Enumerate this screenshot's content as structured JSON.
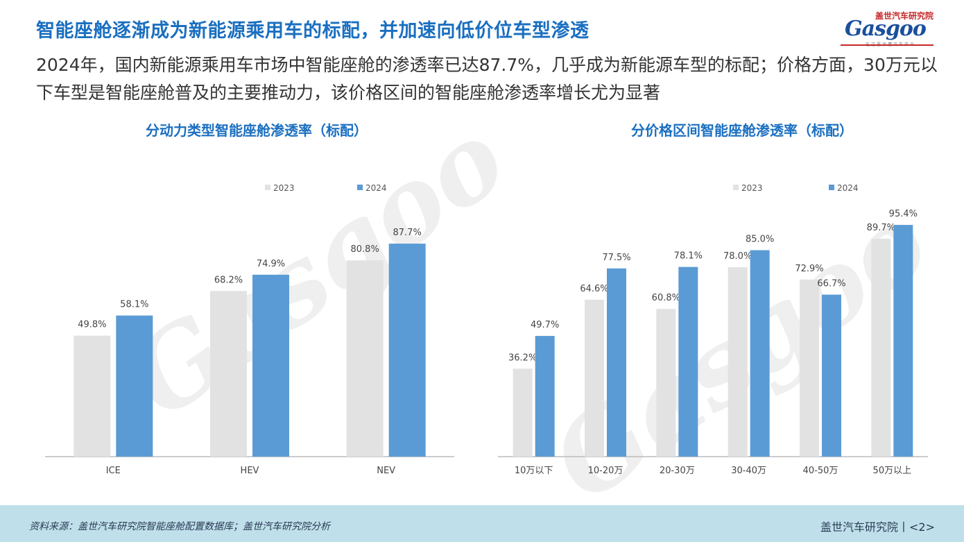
{
  "header": {
    "title": "智能座舱逐渐成为新能源乘用车的标配，并加速向低价位车型渗透",
    "subtitle": "2024年，国内新能源乘用车市场中智能座舱的渗透率已达87.7%，几乎成为新能源车型的标配；价格方面，30万元以下车型是智能座舱普及的主要推动力，该价格区间的智能座舱渗透率增长尤为显著"
  },
  "logo": {
    "cn": "盖世汽车研究院",
    "main": "Gasgoo",
    "slogan": "在这里读懂汽车产业"
  },
  "colors": {
    "y2023": "#e2e2e2",
    "y2024": "#5b9bd5",
    "title": "#1a6fc0"
  },
  "chart_data": [
    {
      "type": "bar",
      "title": "分动力类型智能座舱渗透率（标配）",
      "categories": [
        "ICE",
        "HEV",
        "NEV"
      ],
      "series": [
        {
          "name": "2023",
          "values": [
            49.8,
            68.2,
            80.8
          ]
        },
        {
          "name": "2024",
          "values": [
            58.1,
            74.9,
            87.7
          ]
        }
      ],
      "ylim": [
        0,
        100
      ],
      "legend": "top-center",
      "grid": false
    },
    {
      "type": "bar",
      "title": "分价格区间智能座舱渗透率（标配）",
      "categories": [
        "10万以下",
        "10-20万",
        "20-30万",
        "30-40万",
        "40-50万",
        "50万以上"
      ],
      "series": [
        {
          "name": "2023",
          "values": [
            36.2,
            64.6,
            60.8,
            78.0,
            72.9,
            89.7
          ]
        },
        {
          "name": "2024",
          "values": [
            49.7,
            77.5,
            78.1,
            85.0,
            66.7,
            95.4
          ]
        }
      ],
      "ylim": [
        0,
        100
      ],
      "legend": "top-center",
      "grid": false
    }
  ],
  "footer": {
    "source": "资料来源：盖世汽车研究院智能座舱配置数据库；盖世汽车研究院分析",
    "brand": "盖世汽车研究院丨<2>"
  }
}
